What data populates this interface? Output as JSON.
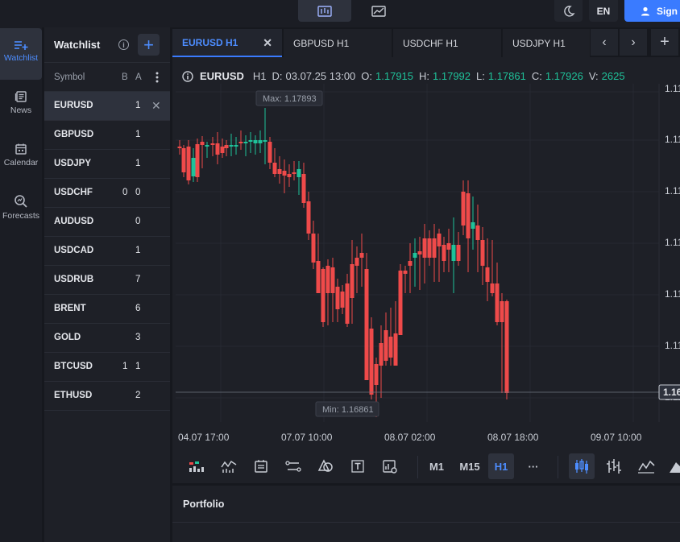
{
  "top": {
    "lang": "EN",
    "signin": "Sign"
  },
  "nav": [
    {
      "label": "Watchlist",
      "icon": "watchlist-add-icon",
      "active": true
    },
    {
      "label": "News",
      "icon": "news-icon"
    },
    {
      "label": "Calendar",
      "icon": "calendar-icon"
    },
    {
      "label": "Forecasts",
      "icon": "forecast-search-icon"
    }
  ],
  "watchlist": {
    "title": "Watchlist",
    "info": "i",
    "add": "+",
    "col_symbol": "Symbol",
    "col_b": "B",
    "col_a": "A",
    "rows": [
      {
        "symbol": "EURUSD",
        "b": "",
        "a": "1",
        "selected": true
      },
      {
        "symbol": "GBPUSD",
        "b": "",
        "a": "1"
      },
      {
        "symbol": "USDJPY",
        "b": "",
        "a": "1"
      },
      {
        "symbol": "USDCHF",
        "b": "0",
        "a": "0"
      },
      {
        "symbol": "AUDUSD",
        "b": "",
        "a": "0"
      },
      {
        "symbol": "USDCAD",
        "b": "",
        "a": "1"
      },
      {
        "symbol": "USDRUB",
        "b": "",
        "a": "7"
      },
      {
        "symbol": "BRENT",
        "b": "",
        "a": "6"
      },
      {
        "symbol": "GOLD",
        "b": "",
        "a": "3"
      },
      {
        "symbol": "BTCUSD",
        "b": "1",
        "a": "1"
      },
      {
        "symbol": "ETHUSD",
        "b": "",
        "a": "2"
      }
    ]
  },
  "tabs": [
    {
      "label": "EURUSD H1",
      "active": true
    },
    {
      "label": "GBPUSD H1"
    },
    {
      "label": "USDCHF H1"
    },
    {
      "label": "USDJPY H1"
    }
  ],
  "info": {
    "symbol": "EURUSD",
    "tf": "H1",
    "d_label": "D:",
    "date": "03.07.25 13:00",
    "o_label": "O:",
    "o": "1.17915",
    "h_label": "H:",
    "h": "1.17992",
    "l_label": "L:",
    "l": "1.17861",
    "c_label": "C:",
    "c": "1.17926",
    "v_label": "V:",
    "v": "2625"
  },
  "chart": {
    "max_label": "Max: 1.17893",
    "min_label": "Min: 1.16861",
    "price_labels": [
      "1.11",
      "1.11",
      "1.11",
      "1.11",
      "1.11",
      "1.11",
      "1.11"
    ],
    "current_price_label": "1.16",
    "time_labels": [
      "04.07 17:00",
      "07.07 10:00",
      "08.07 02:00",
      "08.07 18:00",
      "09.07 10:00"
    ],
    "up_color": "#1fc29a",
    "down_color": "#ef4a4a"
  },
  "toolbar": {
    "tf_m1": "M1",
    "tf_m15": "M15",
    "tf_h1": "H1",
    "more": "···"
  },
  "portfolio": {
    "title": "Portfolio"
  }
}
